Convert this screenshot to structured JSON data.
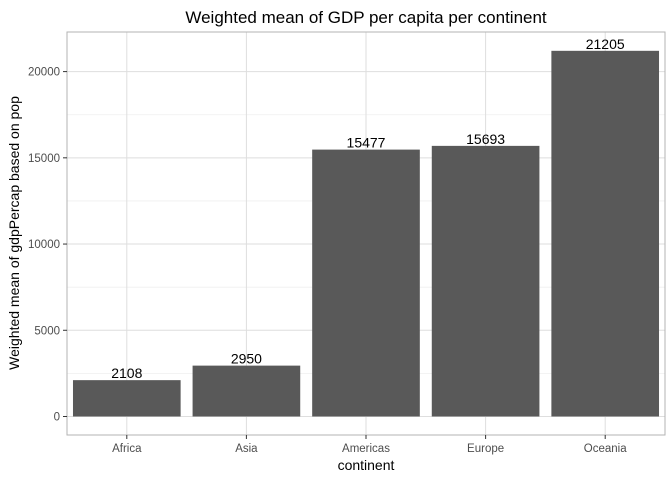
{
  "chart_data": {
    "type": "bar",
    "title": "Weighted mean of GDP per capita per continent",
    "xlabel": "continent",
    "ylabel": "Weighted mean of gdpPercap based on pop",
    "categories": [
      "Africa",
      "Asia",
      "Americas",
      "Europe",
      "Oceania"
    ],
    "values": [
      2108,
      2950,
      15477,
      15693,
      21205
    ],
    "data_labels": [
      "2108",
      "2950",
      "15477",
      "15693",
      "21205"
    ],
    "ylim": [
      0,
      22000
    ],
    "yticks": [
      0,
      5000,
      10000,
      15000,
      20000
    ],
    "ytick_labels": [
      "0",
      "5000",
      "10000",
      "15000",
      "20000"
    ],
    "grid": true,
    "legend": "none",
    "colors": {
      "bar": "#595959",
      "grid_major": "#dedede",
      "grid_minor": "#efefef",
      "panel_border": "#b3b3b3"
    }
  }
}
